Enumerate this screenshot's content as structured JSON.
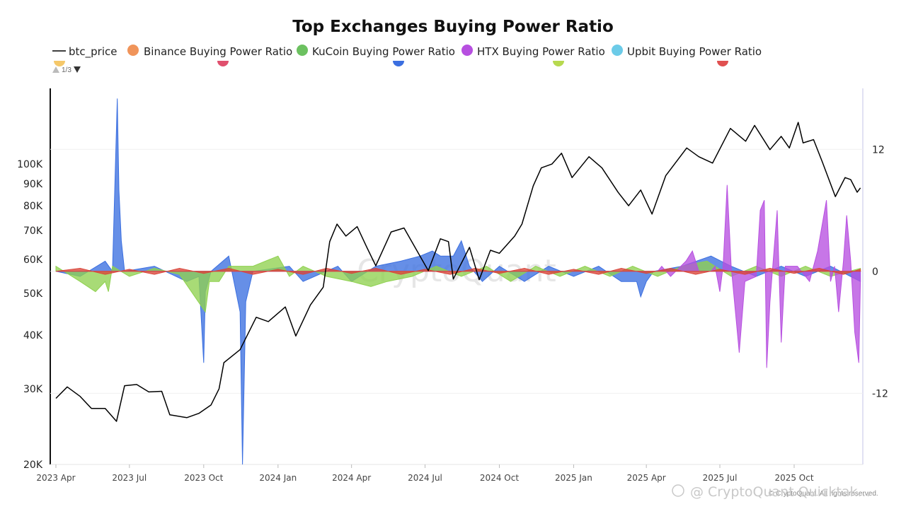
{
  "chart_data": {
    "type": "line",
    "title": "Top Exchanges Buying Power Ratio",
    "legend": [
      {
        "name": "btc_price",
        "color": "#000000",
        "marker": "line"
      },
      {
        "name": "Binance Buying Power Ratio",
        "color": "#f0945a",
        "marker": "dot"
      },
      {
        "name": "KuCoin Buying Power Ratio",
        "color": "#6cc160",
        "marker": "dot"
      },
      {
        "name": "HTX Buying Power Ratio",
        "color": "#b74fe0",
        "marker": "dot"
      },
      {
        "name": "Upbit Buying Power Ratio",
        "color": "#6ccbe8",
        "marker": "dot"
      }
    ],
    "legend_page": "1/3",
    "x_ticks": [
      "2023 Apr",
      "2023 Jul",
      "2023 Oct",
      "2024 Jan",
      "2024 Apr",
      "2024 Jul",
      "2024 Oct",
      "2025 Jan",
      "2025 Apr",
      "2025 Jul",
      "2025 Oct"
    ],
    "x_range": [
      "2023-03-25",
      "2025-12-25"
    ],
    "y_left": {
      "scale": "log",
      "range": [
        20000,
        150000
      ],
      "ticks": [
        100000,
        90000,
        80000,
        70000,
        60000,
        50000,
        40000,
        30000,
        20000
      ],
      "tick_labels": [
        "100K",
        "90K",
        "80K",
        "70K",
        "60K",
        "50K",
        "40K",
        "30K",
        "20K"
      ]
    },
    "y_right": {
      "scale": "linear",
      "range": [
        -19,
        18
      ],
      "ticks": [
        12,
        0,
        -12
      ],
      "tick_labels": [
        "12",
        "0",
        "-12"
      ]
    },
    "btc_price": {
      "name": "btc_price",
      "color": "#000000",
      "points": [
        [
          "2023-04-01",
          28500
        ],
        [
          "2023-04-15",
          30300
        ],
        [
          "2023-05-01",
          28800
        ],
        [
          "2023-05-15",
          27000
        ],
        [
          "2023-06-01",
          27000
        ],
        [
          "2023-06-15",
          25200
        ],
        [
          "2023-06-25",
          30500
        ],
        [
          "2023-07-10",
          30700
        ],
        [
          "2023-07-25",
          29500
        ],
        [
          "2023-08-10",
          29600
        ],
        [
          "2023-08-20",
          26100
        ],
        [
          "2023-09-10",
          25700
        ],
        [
          "2023-09-25",
          26300
        ],
        [
          "2023-10-10",
          27500
        ],
        [
          "2023-10-20",
          30000
        ],
        [
          "2023-10-26",
          34500
        ],
        [
          "2023-11-15",
          37000
        ],
        [
          "2023-12-05",
          44000
        ],
        [
          "2023-12-20",
          43000
        ],
        [
          "2024-01-10",
          46500
        ],
        [
          "2024-01-23",
          39800
        ],
        [
          "2024-02-10",
          47000
        ],
        [
          "2024-02-26",
          51700
        ],
        [
          "2024-03-05",
          66000
        ],
        [
          "2024-03-14",
          72500
        ],
        [
          "2024-03-25",
          68000
        ],
        [
          "2024-04-08",
          71500
        ],
        [
          "2024-04-20",
          64000
        ],
        [
          "2024-05-01",
          58000
        ],
        [
          "2024-05-20",
          69500
        ],
        [
          "2024-06-05",
          71000
        ],
        [
          "2024-06-25",
          61000
        ],
        [
          "2024-07-05",
          56500
        ],
        [
          "2024-07-20",
          67000
        ],
        [
          "2024-07-30",
          66000
        ],
        [
          "2024-08-05",
          54000
        ],
        [
          "2024-08-25",
          64000
        ],
        [
          "2024-09-06",
          53800
        ],
        [
          "2024-09-20",
          63000
        ],
        [
          "2024-10-01",
          62000
        ],
        [
          "2024-10-20",
          68000
        ],
        [
          "2024-10-29",
          72500
        ],
        [
          "2024-11-12",
          89000
        ],
        [
          "2024-11-22",
          98000
        ],
        [
          "2024-12-05",
          100000
        ],
        [
          "2024-12-17",
          106000
        ],
        [
          "2024-12-30",
          93000
        ],
        [
          "2025-01-20",
          104000
        ],
        [
          "2025-02-05",
          98000
        ],
        [
          "2025-02-25",
          86000
        ],
        [
          "2025-03-10",
          80000
        ],
        [
          "2025-03-25",
          87000
        ],
        [
          "2025-04-08",
          76500
        ],
        [
          "2025-04-25",
          94000
        ],
        [
          "2025-05-21",
          109000
        ],
        [
          "2025-06-05",
          104000
        ],
        [
          "2025-06-22",
          100500
        ],
        [
          "2025-07-14",
          121000
        ],
        [
          "2025-08-02",
          113000
        ],
        [
          "2025-08-13",
          123000
        ],
        [
          "2025-09-01",
          108000
        ],
        [
          "2025-09-15",
          116000
        ],
        [
          "2025-09-25",
          109000
        ],
        [
          "2025-10-06",
          125000
        ],
        [
          "2025-10-12",
          112000
        ],
        [
          "2025-10-25",
          114000
        ],
        [
          "2025-11-05",
          101000
        ],
        [
          "2025-11-21",
          84000
        ],
        [
          "2025-12-03",
          93000
        ],
        [
          "2025-12-10",
          92000
        ],
        [
          "2025-12-18",
          86000
        ],
        [
          "2025-12-22",
          88000
        ]
      ]
    },
    "ratio_series": [
      {
        "name": "Upbit / blue",
        "color": "#3b6fe0",
        "points": [
          [
            "2023-04-01",
            0
          ],
          [
            "2023-05-01",
            -0.5
          ],
          [
            "2023-06-01",
            1
          ],
          [
            "2023-06-10",
            0
          ],
          [
            "2023-06-16",
            17
          ],
          [
            "2023-06-18",
            8
          ],
          [
            "2023-06-21",
            3
          ],
          [
            "2023-06-25",
            0
          ],
          [
            "2023-08-01",
            0.5
          ],
          [
            "2023-09-10",
            -1
          ],
          [
            "2023-09-25",
            -0.5
          ],
          [
            "2023-10-01",
            -9
          ],
          [
            "2023-10-03",
            -2
          ],
          [
            "2023-10-10",
            0
          ],
          [
            "2023-11-01",
            1.5
          ],
          [
            "2023-11-15",
            -4
          ],
          [
            "2023-11-18",
            -19
          ],
          [
            "2023-11-22",
            -3
          ],
          [
            "2023-12-01",
            0
          ],
          [
            "2024-01-15",
            0.5
          ],
          [
            "2024-02-01",
            -1
          ],
          [
            "2024-03-15",
            0.5
          ],
          [
            "2024-04-01",
            -1
          ],
          [
            "2024-05-01",
            0.5
          ],
          [
            "2024-06-01",
            1
          ],
          [
            "2024-06-25",
            1.5
          ],
          [
            "2024-07-10",
            2
          ],
          [
            "2024-07-20",
            1.5
          ],
          [
            "2024-08-05",
            1.5
          ],
          [
            "2024-08-15",
            3
          ],
          [
            "2024-08-25",
            0.5
          ],
          [
            "2024-09-10",
            -1
          ],
          [
            "2024-10-01",
            0.5
          ],
          [
            "2024-11-01",
            -1
          ],
          [
            "2024-12-01",
            0.5
          ],
          [
            "2025-01-01",
            -0.5
          ],
          [
            "2025-02-01",
            0.5
          ],
          [
            "2025-03-01",
            -1
          ],
          [
            "2025-03-20",
            -1
          ],
          [
            "2025-03-25",
            -2.5
          ],
          [
            "2025-04-01",
            -1
          ],
          [
            "2025-04-10",
            0
          ],
          [
            "2025-05-15",
            0.5
          ],
          [
            "2025-06-20",
            1.5
          ],
          [
            "2025-07-15",
            0.5
          ],
          [
            "2025-08-15",
            -0.5
          ],
          [
            "2025-09-15",
            0.5
          ],
          [
            "2025-10-15",
            -0.5
          ],
          [
            "2025-11-15",
            0.5
          ],
          [
            "2025-12-22",
            -1
          ]
        ]
      },
      {
        "name": "KuCoin",
        "color": "#8fd14f",
        "points": [
          [
            "2023-04-01",
            0.5
          ],
          [
            "2023-05-01",
            -1
          ],
          [
            "2023-05-20",
            -2
          ],
          [
            "2023-06-01",
            -1
          ],
          [
            "2023-06-05",
            -2
          ],
          [
            "2023-06-10",
            0.5
          ],
          [
            "2023-07-01",
            -0.5
          ],
          [
            "2023-08-01",
            0.3
          ],
          [
            "2023-09-01",
            -0.3
          ],
          [
            "2023-10-03",
            -4
          ],
          [
            "2023-10-08",
            -1
          ],
          [
            "2023-10-20",
            -1
          ],
          [
            "2023-11-01",
            0.5
          ],
          [
            "2023-12-01",
            0.5
          ],
          [
            "2024-01-01",
            1.5
          ],
          [
            "2024-01-15",
            -0.5
          ],
          [
            "2024-02-01",
            0.5
          ],
          [
            "2024-03-01",
            -0.5
          ],
          [
            "2024-04-01",
            -1
          ],
          [
            "2024-04-25",
            -1.5
          ],
          [
            "2024-05-15",
            -1
          ],
          [
            "2024-06-15",
            -0.5
          ],
          [
            "2024-07-15",
            0.5
          ],
          [
            "2024-08-15",
            -0.5
          ],
          [
            "2024-09-15",
            0.5
          ],
          [
            "2024-10-15",
            -1
          ],
          [
            "2024-11-15",
            0.5
          ],
          [
            "2024-12-15",
            -0.5
          ],
          [
            "2025-01-15",
            0.5
          ],
          [
            "2025-02-15",
            -0.5
          ],
          [
            "2025-03-15",
            0.5
          ],
          [
            "2025-04-15",
            -0.5
          ],
          [
            "2025-05-15",
            0.5
          ],
          [
            "2025-06-15",
            1
          ],
          [
            "2025-07-15",
            -0.5
          ],
          [
            "2025-08-15",
            0.5
          ],
          [
            "2025-09-15",
            -0.5
          ],
          [
            "2025-10-15",
            0.5
          ],
          [
            "2025-11-15",
            -0.5
          ],
          [
            "2025-12-22",
            0.3
          ]
        ]
      },
      {
        "name": "HTX",
        "color": "#b74fe0",
        "points": [
          [
            "2023-04-01",
            0
          ],
          [
            "2025-04-15",
            0
          ],
          [
            "2025-04-20",
            0.5
          ],
          [
            "2025-05-01",
            -0.5
          ],
          [
            "2025-05-20",
            1
          ],
          [
            "2025-05-28",
            2
          ],
          [
            "2025-06-05",
            0
          ],
          [
            "2025-06-20",
            0
          ],
          [
            "2025-06-25",
            0.5
          ],
          [
            "2025-07-01",
            -2
          ],
          [
            "2025-07-05",
            0.5
          ],
          [
            "2025-07-10",
            8.5
          ],
          [
            "2025-07-15",
            0.5
          ],
          [
            "2025-07-25",
            -8
          ],
          [
            "2025-08-01",
            -1
          ],
          [
            "2025-08-15",
            -0.5
          ],
          [
            "2025-08-20",
            6
          ],
          [
            "2025-08-25",
            7
          ],
          [
            "2025-08-28",
            -9.5
          ],
          [
            "2025-09-01",
            -3
          ],
          [
            "2025-09-10",
            6
          ],
          [
            "2025-09-15",
            -7
          ],
          [
            "2025-09-20",
            0.5
          ],
          [
            "2025-10-05",
            0.5
          ],
          [
            "2025-10-20",
            -1
          ],
          [
            "2025-10-30",
            2
          ],
          [
            "2025-11-10",
            7
          ],
          [
            "2025-11-15",
            -1
          ],
          [
            "2025-11-20",
            0.5
          ],
          [
            "2025-11-25",
            -4
          ],
          [
            "2025-12-01",
            1
          ],
          [
            "2025-12-05",
            5.5
          ],
          [
            "2025-12-10",
            1
          ],
          [
            "2025-12-15",
            -6
          ],
          [
            "2025-12-20",
            -9
          ],
          [
            "2025-12-22",
            -1
          ]
        ]
      },
      {
        "name": "Binance",
        "color": "#d9453a",
        "points": [
          [
            "2023-04-01",
            0
          ],
          [
            "2023-05-01",
            0.3
          ],
          [
            "2023-06-01",
            -0.3
          ],
          [
            "2023-07-01",
            0.2
          ],
          [
            "2023-08-01",
            -0.3
          ],
          [
            "2023-09-01",
            0.3
          ],
          [
            "2023-10-01",
            -0.2
          ],
          [
            "2023-11-01",
            0.3
          ],
          [
            "2023-12-01",
            -0.3
          ],
          [
            "2024-01-01",
            0.2
          ],
          [
            "2024-02-01",
            -0.3
          ],
          [
            "2024-03-01",
            0.3
          ],
          [
            "2024-04-01",
            -0.2
          ],
          [
            "2024-05-01",
            0.3
          ],
          [
            "2024-06-01",
            -0.3
          ],
          [
            "2024-07-01",
            0.2
          ],
          [
            "2024-08-01",
            -0.3
          ],
          [
            "2024-09-01",
            0.3
          ],
          [
            "2024-10-01",
            -0.2
          ],
          [
            "2024-11-01",
            0.3
          ],
          [
            "2024-12-01",
            -0.3
          ],
          [
            "2025-01-01",
            0.2
          ],
          [
            "2025-02-01",
            -0.3
          ],
          [
            "2025-03-01",
            0.3
          ],
          [
            "2025-04-01",
            -0.2
          ],
          [
            "2025-05-01",
            0.3
          ],
          [
            "2025-06-01",
            -0.3
          ],
          [
            "2025-07-01",
            0.2
          ],
          [
            "2025-08-01",
            -0.3
          ],
          [
            "2025-09-01",
            0.3
          ],
          [
            "2025-10-01",
            -0.2
          ],
          [
            "2025-11-01",
            0.3
          ],
          [
            "2025-12-01",
            -0.3
          ],
          [
            "2025-12-22",
            0.2
          ]
        ]
      }
    ]
  },
  "watermark": {
    "center": "CryptoQuant",
    "bottom": "@ CryptoQuant Quicktak...",
    "copyright": "© CryptoQuant. All rights reserved."
  }
}
